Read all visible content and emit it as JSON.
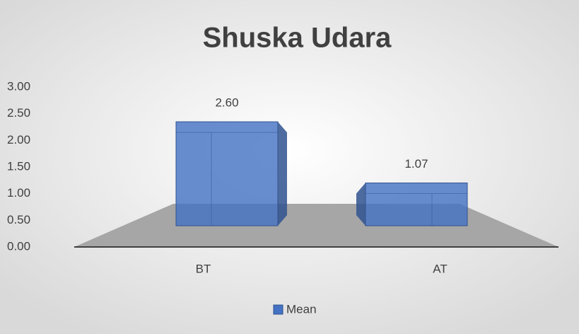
{
  "chart_data": {
    "type": "bar",
    "title": "Shuska Udara",
    "categories": [
      "BT",
      "AT"
    ],
    "series": [
      {
        "name": "Mean",
        "color": "#4472c4",
        "values": [
          2.6,
          1.07
        ],
        "value_labels": [
          "2.60",
          "1.07"
        ]
      }
    ],
    "ylim": [
      0,
      3
    ],
    "yticks": [
      {
        "value": 0,
        "label": "0.00"
      },
      {
        "value": 0.5,
        "label": "0.50"
      },
      {
        "value": 1,
        "label": "1.00"
      },
      {
        "value": 1.5,
        "label": "1.50"
      },
      {
        "value": 2,
        "label": "2.00"
      },
      {
        "value": 2.5,
        "label": "2.50"
      },
      {
        "value": 3,
        "label": "3.00"
      }
    ],
    "legend": "bottom"
  }
}
